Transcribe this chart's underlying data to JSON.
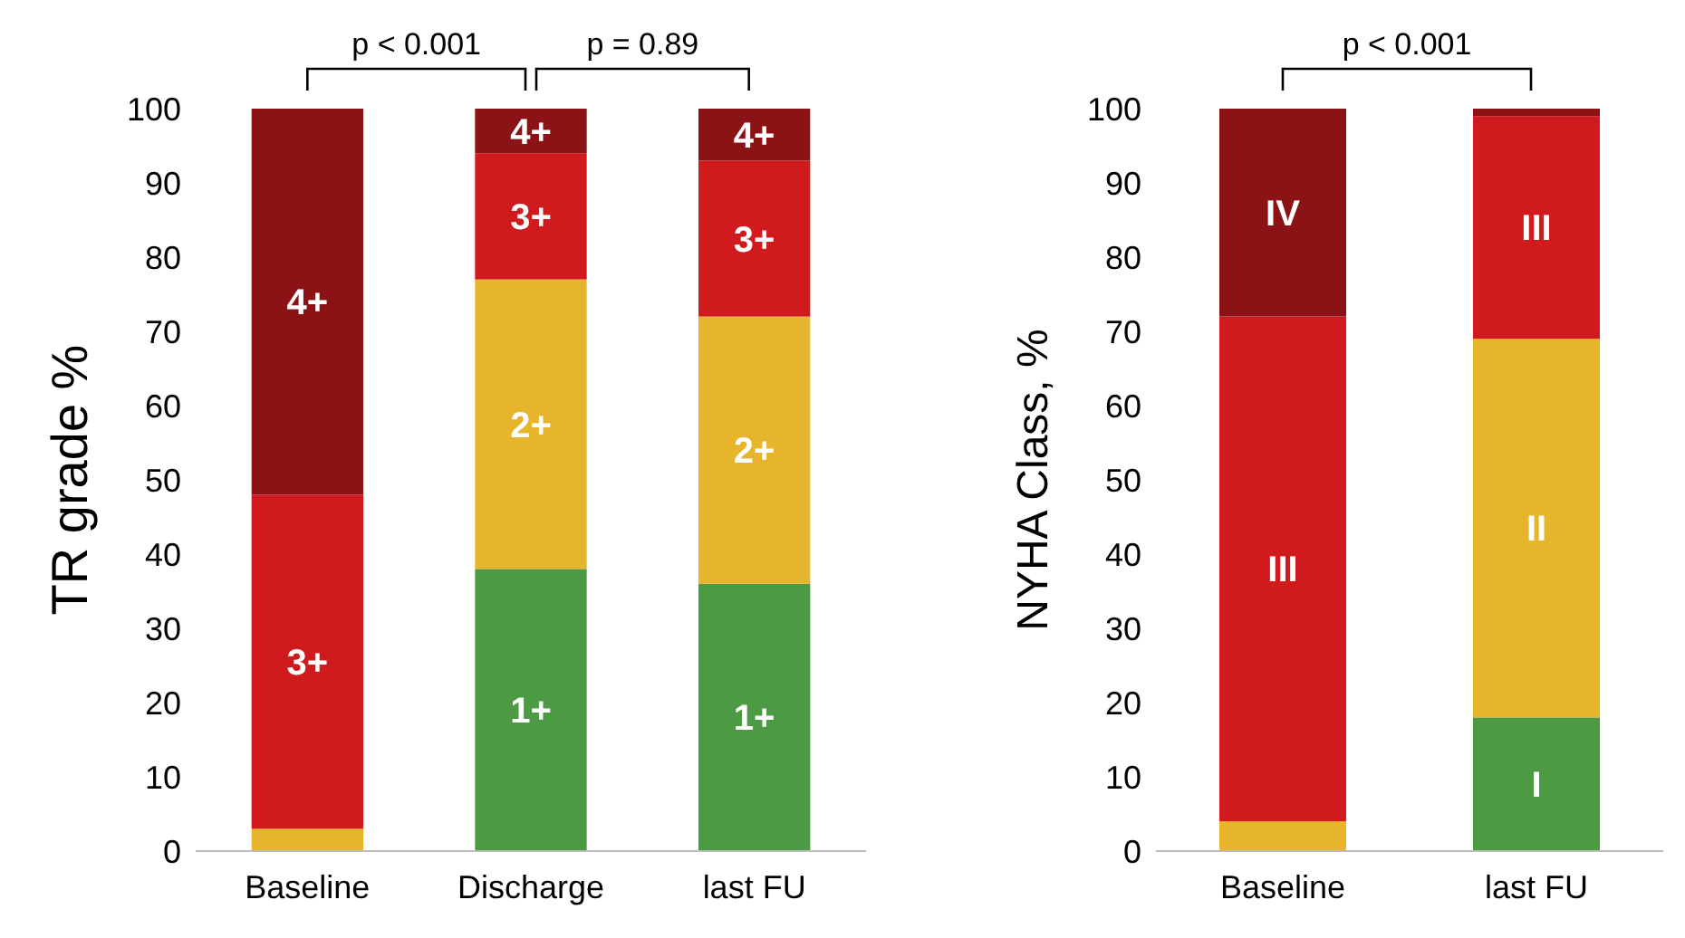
{
  "chart_data": [
    {
      "type": "bar",
      "stacked": true,
      "ylabel": "TR grade %",
      "categories": [
        "Baseline",
        "Discharge",
        "last FU"
      ],
      "ylim": [
        0,
        100
      ],
      "yticks": [
        0,
        10,
        20,
        30,
        40,
        50,
        60,
        70,
        80,
        90,
        100
      ],
      "annotations": [
        "p < 0.001",
        "p = 0.89"
      ],
      "series": [
        {
          "name": "1+",
          "color": "#4d9a45",
          "values": [
            0,
            38,
            36
          ]
        },
        {
          "name": "2+",
          "color": "#e6b52b",
          "values": [
            3,
            39,
            36
          ]
        },
        {
          "name": "3+",
          "color": "#d01a1e",
          "values": [
            45,
            17,
            21
          ]
        },
        {
          "name": "4+",
          "color": "#8c1315",
          "values": [
            52,
            6,
            7
          ]
        }
      ]
    },
    {
      "type": "bar",
      "stacked": true,
      "ylabel": "NYHA Class, %",
      "categories": [
        "Baseline",
        "last FU"
      ],
      "ylim": [
        0,
        100
      ],
      "yticks": [
        0,
        10,
        20,
        30,
        40,
        50,
        60,
        70,
        80,
        90,
        100
      ],
      "annotations": [
        "p < 0.001"
      ],
      "series": [
        {
          "name": "I",
          "color": "#4d9a45",
          "values": [
            0,
            18
          ]
        },
        {
          "name": "II",
          "color": "#e6b52b",
          "values": [
            4,
            51
          ]
        },
        {
          "name": "III",
          "color": "#d01a1e",
          "values": [
            68,
            30
          ]
        },
        {
          "name": "IV",
          "color": "#8c1315",
          "values": [
            28,
            1
          ]
        }
      ]
    }
  ]
}
